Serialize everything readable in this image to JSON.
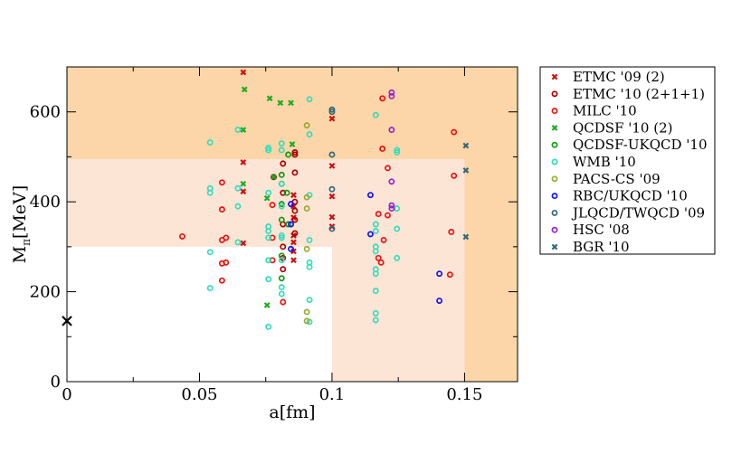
{
  "chart_data": {
    "type": "scatter",
    "xlabel": "a[fm]",
    "ylabel_main": "M",
    "ylabel_sub": "π",
    "ylabel_unit": "[MeV]",
    "xlim": [
      0,
      0.17
    ],
    "ylim": [
      0,
      700
    ],
    "xticks": [
      0,
      0.05,
      0.1,
      0.15
    ],
    "xtick_labels": [
      "0",
      "0.05",
      "0.1",
      "0.15"
    ],
    "yticks": [
      0,
      200,
      400,
      600
    ],
    "ytick_labels": [
      "0",
      "200",
      "400",
      "600"
    ],
    "grid": false,
    "legend_position": "right, outside plot",
    "regions": [
      {
        "x": [
          0,
          0.17
        ],
        "y": [
          0,
          700
        ],
        "color": "#FCD6A8"
      },
      {
        "x": [
          0,
          0.15
        ],
        "y": [
          0,
          495
        ],
        "color": "#FDE5D6"
      },
      {
        "x": [
          0,
          0.1
        ],
        "y": [
          0,
          300
        ],
        "color": "#FFFFFF"
      }
    ],
    "physical_point": {
      "x": 0,
      "y": 135,
      "marker": "x",
      "color": "#000000"
    },
    "series": [
      {
        "name": "ETMC '09 (2)",
        "marker": "x",
        "color": "#CC1111",
        "points": [
          [
            0.0665,
            688
          ],
          [
            0.0665,
            488
          ],
          [
            0.0665,
            423
          ],
          [
            0.0665,
            308
          ],
          [
            0.0855,
            415
          ],
          [
            0.0855,
            390
          ],
          [
            0.0855,
            365
          ],
          [
            0.0855,
            325
          ],
          [
            0.0855,
            310
          ],
          [
            0.0855,
            290
          ],
          [
            0.0855,
            270
          ],
          [
            0.1,
            585
          ],
          [
            0.1,
            480
          ],
          [
            0.1,
            412
          ],
          [
            0.1,
            366
          ],
          [
            0.1,
            345
          ]
        ]
      },
      {
        "name": "ETMC '10 (2+1+1)",
        "marker": "o",
        "color": "#AA0000",
        "points": [
          [
            0.078,
            455
          ],
          [
            0.0815,
            485
          ],
          [
            0.0815,
            420
          ],
          [
            0.0815,
            350
          ],
          [
            0.0815,
            300
          ],
          [
            0.0815,
            275
          ],
          [
            0.0815,
            250
          ],
          [
            0.086,
            510
          ],
          [
            0.086,
            505
          ],
          [
            0.086,
            465
          ],
          [
            0.086,
            400
          ],
          [
            0.086,
            380
          ],
          [
            0.086,
            360
          ],
          [
            0.086,
            330
          ]
        ]
      },
      {
        "name": "MILC '10",
        "marker": "o",
        "color": "#EE1111",
        "points": [
          [
            0.0435,
            323
          ],
          [
            0.0585,
            443
          ],
          [
            0.0585,
            383
          ],
          [
            0.0585,
            315
          ],
          [
            0.0585,
            263
          ],
          [
            0.0585,
            225
          ],
          [
            0.06,
            320
          ],
          [
            0.06,
            265
          ],
          [
            0.0775,
            393
          ],
          [
            0.0775,
            320
          ],
          [
            0.0775,
            270
          ],
          [
            0.0815,
            177
          ],
          [
            0.119,
            630
          ],
          [
            0.119,
            518
          ],
          [
            0.1175,
            373
          ],
          [
            0.1195,
            315
          ],
          [
            0.1175,
            275
          ],
          [
            0.1185,
            265
          ],
          [
            0.121,
            370
          ],
          [
            0.121,
            475
          ],
          [
            0.146,
            555
          ],
          [
            0.146,
            458
          ],
          [
            0.145,
            333
          ],
          [
            0.1445,
            238
          ]
        ]
      },
      {
        "name": "QCDSF '10 (2)",
        "marker": "x",
        "color": "#22AA22",
        "points": [
          [
            0.067,
            650
          ],
          [
            0.0765,
            630
          ],
          [
            0.0805,
            620
          ],
          [
            0.0845,
            620
          ],
          [
            0.0665,
            560
          ],
          [
            0.0665,
            440
          ],
          [
            0.0755,
            408
          ],
          [
            0.0755,
            170
          ],
          [
            0.085,
            528
          ],
          [
            0.078,
            455
          ]
        ]
      },
      {
        "name": "QCDSF-UKQCD '10",
        "marker": "o",
        "color": "#119911",
        "points": [
          [
            0.081,
            460
          ],
          [
            0.081,
            440
          ],
          [
            0.081,
            395
          ],
          [
            0.081,
            360
          ],
          [
            0.081,
            280
          ],
          [
            0.081,
            230
          ],
          [
            0.083,
            420
          ],
          [
            0.0835,
            505
          ],
          [
            0.0835,
            350
          ]
        ]
      },
      {
        "name": "WMB '10",
        "marker": "o",
        "color": "#33DDBB",
        "points": [
          [
            0.054,
            532
          ],
          [
            0.054,
            430
          ],
          [
            0.054,
            420
          ],
          [
            0.054,
            288
          ],
          [
            0.054,
            208
          ],
          [
            0.0645,
            560
          ],
          [
            0.0645,
            430
          ],
          [
            0.0645,
            390
          ],
          [
            0.0645,
            310
          ],
          [
            0.076,
            520
          ],
          [
            0.076,
            515
          ],
          [
            0.076,
            420
          ],
          [
            0.076,
            345
          ],
          [
            0.076,
            335
          ],
          [
            0.076,
            320
          ],
          [
            0.076,
            270
          ],
          [
            0.076,
            228
          ],
          [
            0.076,
            122
          ],
          [
            0.081,
            530
          ],
          [
            0.081,
            515
          ],
          [
            0.081,
            440
          ],
          [
            0.081,
            390
          ],
          [
            0.081,
            325
          ],
          [
            0.081,
            320
          ],
          [
            0.081,
            270
          ],
          [
            0.081,
            210
          ],
          [
            0.081,
            195
          ],
          [
            0.0915,
            628
          ],
          [
            0.0915,
            550
          ],
          [
            0.0915,
            415
          ],
          [
            0.0915,
            315
          ],
          [
            0.0915,
            265
          ],
          [
            0.0915,
            255
          ],
          [
            0.0915,
            182
          ],
          [
            0.0915,
            133
          ],
          [
            0.1165,
            593
          ],
          [
            0.1165,
            350
          ],
          [
            0.1165,
            335
          ],
          [
            0.1165,
            300
          ],
          [
            0.1165,
            290
          ],
          [
            0.1165,
            250
          ],
          [
            0.1165,
            240
          ],
          [
            0.1165,
            202
          ],
          [
            0.1165,
            152
          ],
          [
            0.1165,
            137
          ],
          [
            0.1245,
            515
          ],
          [
            0.1245,
            510
          ],
          [
            0.1245,
            385
          ],
          [
            0.1245,
            340
          ],
          [
            0.1245,
            275
          ]
        ]
      },
      {
        "name": "PACS-CS '09",
        "marker": "o",
        "color": "#99AA33",
        "points": [
          [
            0.0905,
            570
          ],
          [
            0.0905,
            410
          ],
          [
            0.0905,
            385
          ],
          [
            0.0905,
            295
          ],
          [
            0.0905,
            155
          ],
          [
            0.0905,
            135
          ]
        ]
      },
      {
        "name": "RBC/UKQCD '10",
        "marker": "o",
        "color": "#1111EE",
        "points": [
          [
            0.0845,
            350
          ],
          [
            0.0845,
            295
          ],
          [
            0.0845,
            395
          ],
          [
            0.1145,
            415
          ],
          [
            0.1145,
            328
          ],
          [
            0.1405,
            240
          ],
          [
            0.1405,
            180
          ]
        ]
      },
      {
        "name": "JLQCD/TWQCD '09",
        "marker": "o",
        "color": "#336677",
        "points": [
          [
            0.1,
            605
          ],
          [
            0.1,
            600
          ],
          [
            0.1,
            505
          ],
          [
            0.1,
            428
          ],
          [
            0.1,
            340
          ]
        ]
      },
      {
        "name": "HSC '08",
        "marker": "o",
        "color": "#9922CC",
        "points": [
          [
            0.1225,
            643
          ],
          [
            0.1225,
            635
          ],
          [
            0.1225,
            560
          ],
          [
            0.1225,
            445
          ],
          [
            0.1225,
            392
          ],
          [
            0.1225,
            385
          ]
        ]
      },
      {
        "name": "BGR '10",
        "marker": "x",
        "color": "#336677",
        "points": [
          [
            0.1505,
            525
          ],
          [
            0.1505,
            470
          ],
          [
            0.1505,
            322
          ]
        ]
      }
    ]
  }
}
